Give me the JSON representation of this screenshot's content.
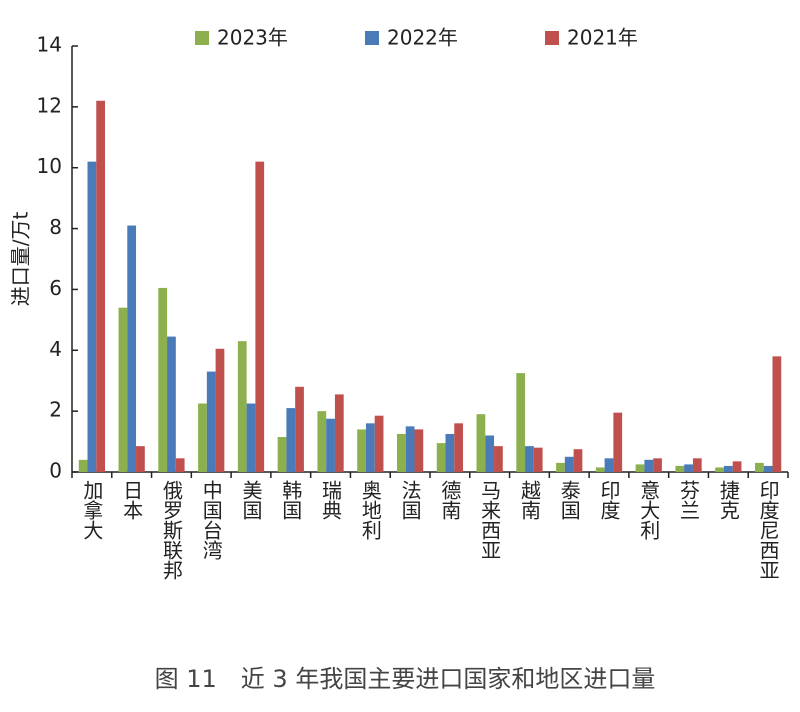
{
  "chart_data": {
    "type": "bar",
    "y_label": "进口量/万t",
    "caption": "图 11　近 3 年我国主要进口国家和地区进口量",
    "categories": [
      "加拿大",
      "日本",
      "俄罗斯联邦",
      "中国台湾",
      "美国",
      "韩国",
      "瑞典",
      "奥地利",
      "法国",
      "德南",
      "马来西亚",
      "越南",
      "泰国",
      "印度",
      "意大利",
      "芬兰",
      "捷克",
      "印度尼西亚"
    ],
    "series": [
      {
        "name": "2023年",
        "color": "#8db04e",
        "values": [
          0.4,
          5.4,
          6.05,
          2.25,
          4.3,
          1.15,
          2.0,
          1.4,
          1.25,
          0.95,
          1.9,
          3.25,
          0.3,
          0.15,
          0.25,
          0.2,
          0.15,
          0.3
        ]
      },
      {
        "name": "2022年",
        "color": "#4a7ab8",
        "values": [
          10.2,
          8.1,
          4.45,
          3.3,
          2.25,
          2.1,
          1.75,
          1.6,
          1.5,
          1.25,
          1.2,
          0.85,
          0.5,
          0.45,
          0.4,
          0.25,
          0.2,
          0.2
        ]
      },
      {
        "name": "2021年",
        "color": "#c0504d",
        "values": [
          12.2,
          0.85,
          0.45,
          4.05,
          10.2,
          2.8,
          2.55,
          1.85,
          1.4,
          1.6,
          0.85,
          0.8,
          0.75,
          1.95,
          0.45,
          0.45,
          0.35,
          3.8
        ]
      }
    ],
    "ylim": [
      0,
      14
    ],
    "yticks": [
      0,
      2,
      4,
      6,
      8,
      10,
      12,
      14
    ]
  }
}
